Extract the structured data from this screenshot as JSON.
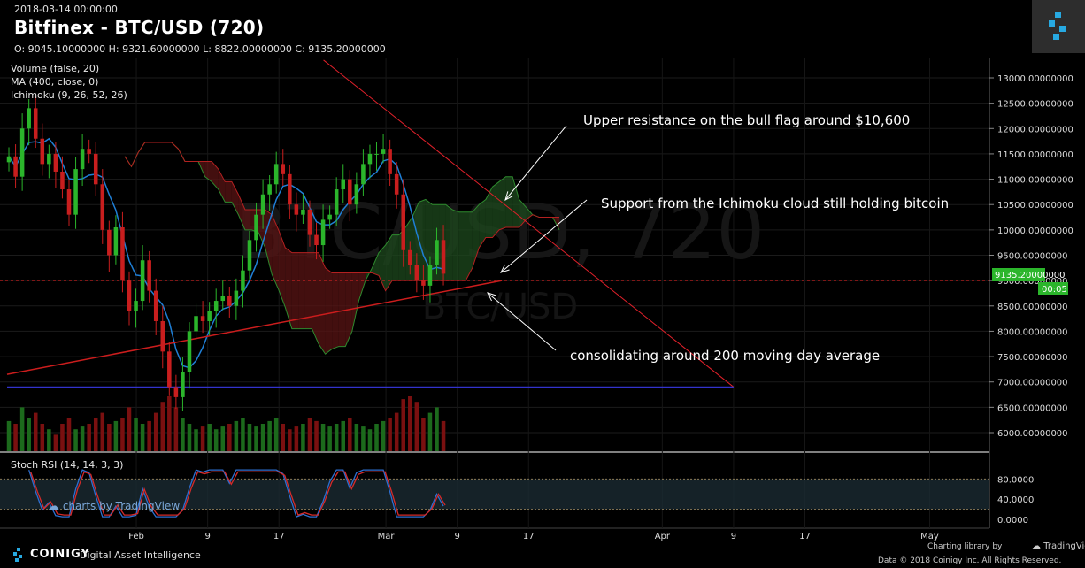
{
  "header": {
    "datetime": "2018-03-14 00:00:00",
    "title": "Bitfinex - BTC/USD (720)",
    "ohlc": "O: 9045.10000000 H: 9321.60000000 L: 8822.00000000 C: 9135.20000000"
  },
  "indicators": {
    "volume": "Volume (false, 20)",
    "ma": "MA (400, close, 0)",
    "ichimoku": "Ichimoku (9, 26, 52, 26)",
    "stoch": "Stoch RSI (14, 14, 3, 3)"
  },
  "watermark": {
    "main": "BTC/USD, 720",
    "sub": "BTC/USD",
    "tv": "charts by TradingView"
  },
  "price_tag": {
    "price": "9135.20000000",
    "timer": "00:05"
  },
  "footer": {
    "brand": "COINIGY",
    "tagline": "Digital Asset Intelligence",
    "charting": "Charting library by",
    "tv": "TradingView",
    "copyright": "Data © 2018 Coinigy Inc. All Rights Reserved."
  },
  "colors": {
    "up": "#2bb52b",
    "down": "#c81e1e",
    "ma": "#cc1d1d",
    "tenkan": "#1f7fd6",
    "trend": "#e0202a",
    "support": "#3333cc",
    "cloud_red": "#5a1414",
    "cloud_green": "#1e4a1e",
    "stoch_k": "#2d6fd1",
    "stoch_d": "#d62a2a"
  },
  "chart_data": {
    "type": "candlestick",
    "title": "Bitfinex - BTC/USD (720)",
    "ylim": [
      5600,
      13350
    ],
    "y_ticks": [
      6000,
      6500,
      7000,
      7500,
      8000,
      8500,
      9000,
      9500,
      10000,
      10500,
      11000,
      11500,
      12000,
      12500,
      13000
    ],
    "y_tick_labels": [
      "6000.00000000",
      "6500.00000000",
      "7000.00000000",
      "7500.00000000",
      "8000.00000000",
      "8500.00000000",
      "9000.00000000",
      "9500.00000000",
      "10000.00000000",
      "10500.00000000",
      "11000.00000000",
      "11500.00000000",
      "12000.00000000",
      "12500.00000000",
      "13000.00000000"
    ],
    "x_ticks": [
      {
        "label": "Feb",
        "day": 33
      },
      {
        "label": "9",
        "day": 41
      },
      {
        "label": "17",
        "day": 49
      },
      {
        "label": "Mar",
        "day": 61
      },
      {
        "label": "9",
        "day": 69
      },
      {
        "label": "17",
        "day": 77
      },
      {
        "label": "Apr",
        "day": 92
      },
      {
        "label": "9",
        "day": 100
      },
      {
        "label": "17",
        "day": 108
      },
      {
        "label": "May",
        "day": 122
      }
    ],
    "x_range_days": [
      18.5,
      128.5
    ],
    "close_series": [
      11450,
      11050,
      12000,
      12400,
      11800,
      11300,
      11500,
      11150,
      10800,
      10300,
      11200,
      11600,
      11500,
      10900,
      10000,
      9500,
      10050,
      9000,
      8400,
      8600,
      9400,
      8800,
      8200,
      7600,
      6900,
      6700,
      7200,
      8000,
      8300,
      8200,
      8400,
      8600,
      8700,
      8500,
      8800,
      9200,
      9800,
      10300,
      10700,
      10900,
      11300,
      11100,
      10500,
      10300,
      10400,
      9900,
      9700,
      10200,
      10300,
      10800,
      11000,
      10500,
      10900,
      11300,
      11500,
      11500,
      11600,
      11100,
      10700,
      9600,
      9300,
      9000,
      8900,
      9300,
      9800,
      9135
    ],
    "close_start_day": 18.7,
    "close_step_days": 0.75,
    "volume_rel": [
      0.55,
      0.5,
      0.8,
      0.6,
      0.7,
      0.5,
      0.4,
      0.3,
      0.5,
      0.6,
      0.4,
      0.45,
      0.5,
      0.6,
      0.7,
      0.5,
      0.55,
      0.6,
      0.8,
      0.6,
      0.5,
      0.55,
      0.7,
      0.9,
      1.0,
      0.8,
      0.6,
      0.5,
      0.4,
      0.45,
      0.5,
      0.4,
      0.45,
      0.5,
      0.55,
      0.6,
      0.5,
      0.45,
      0.5,
      0.55,
      0.6,
      0.5,
      0.4,
      0.45,
      0.5,
      0.6,
      0.55,
      0.5,
      0.45,
      0.5,
      0.55,
      0.6,
      0.5,
      0.45,
      0.4,
      0.5,
      0.55,
      0.6,
      0.7,
      0.95,
      1.0,
      0.9,
      0.6,
      0.7,
      0.8,
      0.55
    ],
    "ma_line": [
      {
        "day": 18.5,
        "value": 7150
      },
      {
        "day": 74,
        "value": 9000
      }
    ],
    "support_line": {
      "value": 6900,
      "from_day": 18.5,
      "to_day": 100
    },
    "current_price_line": 9000,
    "resistance_line": [
      {
        "day": 54,
        "value": 13350
      },
      {
        "day": 100,
        "value": 6900
      }
    ],
    "stoch_rsi": {
      "ylim": [
        0,
        100
      ],
      "bands": [
        20,
        80
      ],
      "tick_labels": [
        "0.0000",
        "40.0000",
        "80.0000"
      ],
      "ticks": [
        0,
        40,
        80
      ]
    },
    "annotations": [
      {
        "text": "Upper resistance on the bull flag around $10,600"
      },
      {
        "text": "Support from the Ichimoku cloud still holding bitcoin"
      },
      {
        "text": "consolidating around 200 moving day average"
      }
    ]
  }
}
